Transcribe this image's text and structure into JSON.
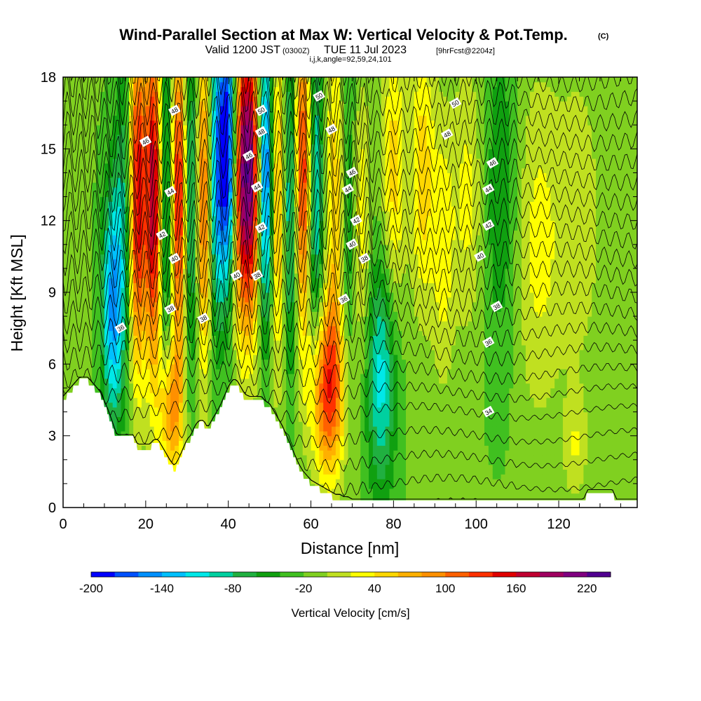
{
  "chart_data": {
    "type": "heatmap",
    "title": "Wind-Parallel Section at Max W: Vertical Velocity & Pot.Temp.",
    "title_mark": "(C)",
    "subtitle": {
      "prefix": "Valid 1200 JST",
      "utc": "(0300Z)",
      "date": "TUE 11 Jul 2023",
      "forecast": "[9hrFcst@2204z]"
    },
    "info_line": "i,j,k,angle=92,59,24,101",
    "xlabel": "Distance [nm]",
    "ylabel": "Height [Kft MSL]",
    "xlim": [
      0,
      139
    ],
    "ylim": [
      0,
      18
    ],
    "x_ticks": [
      0,
      20,
      40,
      60,
      80,
      100,
      120
    ],
    "y_ticks": [
      0,
      3,
      6,
      9,
      12,
      15,
      18
    ],
    "colorbar": {
      "title": "Vertical Velocity [cm/s]",
      "min": -200,
      "max": 240,
      "step": 20,
      "tick_values": [
        -200,
        -140,
        -80,
        -20,
        40,
        100,
        160,
        220
      ],
      "colors": [
        "#0000ff",
        "#0050ff",
        "#0090ff",
        "#00c0ff",
        "#00e8e8",
        "#00d0a0",
        "#20b040",
        "#10a010",
        "#40c020",
        "#80d020",
        "#c0e020",
        "#ffff00",
        "#ffd700",
        "#ffb000",
        "#ff9000",
        "#ff6000",
        "#ff3000",
        "#e00000",
        "#c00030",
        "#a00060",
        "#800080",
        "#500090"
      ]
    },
    "terrain_profile": {
      "x": [
        0,
        1,
        2,
        3,
        4,
        5,
        6,
        7,
        8,
        9,
        10,
        11,
        12,
        13,
        14,
        15,
        16,
        17,
        18,
        19,
        20,
        21,
        22,
        23,
        24,
        25,
        26,
        27,
        28,
        29,
        30,
        31,
        32,
        33,
        34,
        35,
        36,
        37,
        38,
        39,
        40,
        41,
        42,
        43,
        44,
        45,
        46,
        47,
        48,
        49,
        50,
        51,
        52,
        53,
        54,
        55,
        56,
        57,
        58,
        59,
        60,
        61,
        62,
        63,
        64,
        65,
        66,
        67,
        68,
        69,
        70,
        71,
        72,
        73,
        74,
        75,
        76,
        77,
        78,
        79,
        80,
        81,
        82,
        83,
        84,
        85,
        86,
        87,
        88,
        89,
        90,
        91,
        92,
        93,
        94,
        95,
        96,
        97,
        98,
        99,
        100,
        101,
        102,
        103,
        104,
        105,
        106,
        107,
        108,
        109,
        110,
        111,
        112,
        113,
        114,
        115,
        116,
        117,
        118,
        119,
        120,
        121,
        122,
        123,
        124,
        125,
        126,
        127,
        128,
        129,
        130,
        131,
        132,
        133,
        134,
        135,
        136,
        137,
        138,
        139
      ],
      "height": [
        4.6,
        4.8,
        5.0,
        5.2,
        5.4,
        5.4,
        5.4,
        5.2,
        5.0,
        4.8,
        4.4,
        4.0,
        3.5,
        3.0,
        3.0,
        3.0,
        3.0,
        3.0,
        2.6,
        2.6,
        2.6,
        2.6,
        2.8,
        2.8,
        2.5,
        2.2,
        1.9,
        1.7,
        2.0,
        2.4,
        2.8,
        3.0,
        3.4,
        3.6,
        3.6,
        3.3,
        3.6,
        3.9,
        4.2,
        4.6,
        5.0,
        5.3,
        5.3,
        5.0,
        4.7,
        4.6,
        4.6,
        4.6,
        4.6,
        4.4,
        4.3,
        4.0,
        3.7,
        3.4,
        3.0,
        2.6,
        2.2,
        1.8,
        1.5,
        1.3,
        1.1,
        1.0,
        0.9,
        0.8,
        0.7,
        0.6,
        0.5,
        0.5,
        0.4,
        0.4,
        0.3,
        0.3,
        0.3,
        0.3,
        0.3,
        0.3,
        0.3,
        0.3,
        0.3,
        0.3,
        0.3,
        0.3,
        0.3,
        0.3,
        0.3,
        0.3,
        0.3,
        0.3,
        0.3,
        0.3,
        0.3,
        0.3,
        0.3,
        0.3,
        0.3,
        0.3,
        0.3,
        0.3,
        0.3,
        0.3,
        0.3,
        0.3,
        0.3,
        0.3,
        0.3,
        0.3,
        0.3,
        0.3,
        0.3,
        0.3,
        0.3,
        0.3,
        0.3,
        0.3,
        0.3,
        0.3,
        0.3,
        0.3,
        0.3,
        0.3,
        0.3,
        0.3,
        0.3,
        0.3,
        0.3,
        0.3,
        0.3,
        0.7,
        0.7,
        0.7,
        0.7,
        0.7,
        0.7,
        0.7,
        0.3,
        0.3,
        0.3,
        0.3,
        0.3,
        0.3,
        0.3
      ]
    },
    "velocity_cores": [
      {
        "x": 12,
        "y": 8.5,
        "sigma_x": 1.8,
        "sigma_y": 3.5,
        "w": -130
      },
      {
        "x": 15,
        "y": 13,
        "sigma_x": 1.5,
        "sigma_y": 5,
        "w": -60
      },
      {
        "x": 18,
        "y": 13,
        "sigma_x": 1.5,
        "sigma_y": 5,
        "w": 180
      },
      {
        "x": 22,
        "y": 13,
        "sigma_x": 1.4,
        "sigma_y": 5,
        "w": 200
      },
      {
        "x": 25,
        "y": 13,
        "sigma_x": 1.4,
        "sigma_y": 5,
        "w": -90
      },
      {
        "x": 28,
        "y": 13,
        "sigma_x": 1.4,
        "sigma_y": 5,
        "w": 180
      },
      {
        "x": 26,
        "y": 4.0,
        "sigma_x": 2.0,
        "sigma_y": 2.0,
        "w": 100
      },
      {
        "x": 31,
        "y": 13,
        "sigma_x": 1.4,
        "sigma_y": 5,
        "w": -100
      },
      {
        "x": 34,
        "y": 13,
        "sigma_x": 1.4,
        "sigma_y": 5,
        "w": 140
      },
      {
        "x": 37,
        "y": 14,
        "sigma_x": 1.4,
        "sigma_y": 4.5,
        "w": -110
      },
      {
        "x": 40,
        "y": 15,
        "sigma_x": 1.6,
        "sigma_y": 4,
        "w": -200
      },
      {
        "x": 43,
        "y": 14,
        "sigma_x": 1.6,
        "sigma_y": 4.5,
        "w": 190
      },
      {
        "x": 46,
        "y": 14,
        "sigma_x": 1.6,
        "sigma_y": 4.5,
        "w": 190
      },
      {
        "x": 49,
        "y": 14,
        "sigma_x": 1.5,
        "sigma_y": 4.5,
        "w": -180
      },
      {
        "x": 52,
        "y": 13,
        "sigma_x": 1.5,
        "sigma_y": 5,
        "w": 120
      },
      {
        "x": 55,
        "y": 13,
        "sigma_x": 1.5,
        "sigma_y": 5,
        "w": -110
      },
      {
        "x": 58,
        "y": 14,
        "sigma_x": 1.5,
        "sigma_y": 4.5,
        "w": 180
      },
      {
        "x": 61,
        "y": 13,
        "sigma_x": 1.5,
        "sigma_y": 5,
        "w": -100
      },
      {
        "x": 64,
        "y": 5.0,
        "sigma_x": 3.0,
        "sigma_y": 2.6,
        "w": 150
      },
      {
        "x": 66,
        "y": 13,
        "sigma_x": 1.8,
        "sigma_y": 5,
        "w": 80
      },
      {
        "x": 69,
        "y": 12,
        "sigma_x": 1.6,
        "sigma_y": 5,
        "w": -60
      },
      {
        "x": 72,
        "y": 12,
        "sigma_x": 1.6,
        "sigma_y": 4,
        "w": 60
      },
      {
        "x": 77,
        "y": 5.5,
        "sigma_x": 2.5,
        "sigma_y": 3.5,
        "w": -90
      },
      {
        "x": 80,
        "y": 14,
        "sigma_x": 2.0,
        "sigma_y": 4,
        "w": 70
      },
      {
        "x": 87,
        "y": 14,
        "sigma_x": 2.0,
        "sigma_y": 4,
        "w": 70
      },
      {
        "x": 92,
        "y": 11,
        "sigma_x": 2.0,
        "sigma_y": 4,
        "w": 50
      },
      {
        "x": 98,
        "y": 13,
        "sigma_x": 2.5,
        "sigma_y": 4,
        "w": 45
      },
      {
        "x": 106,
        "y": 13,
        "sigma_x": 3.0,
        "sigma_y": 5,
        "w": -40
      },
      {
        "x": 115,
        "y": 11,
        "sigma_x": 4.0,
        "sigma_y": 5,
        "w": 45
      },
      {
        "x": 125,
        "y": 12,
        "sigma_x": 4.0,
        "sigma_y": 5,
        "w": 30
      },
      {
        "x": 124,
        "y": 2.5,
        "sigma_x": 2.0,
        "sigma_y": 1.5,
        "w": 35
      }
    ],
    "theta_contours": {
      "min_level": 26,
      "max_level": 52,
      "step": 1,
      "labels": [
        {
          "value": "36",
          "x": 14,
          "y": 7.5
        },
        {
          "value": "38",
          "x": 26,
          "y": 8.3
        },
        {
          "value": "38",
          "x": 34,
          "y": 7.9
        },
        {
          "value": "42",
          "x": 24,
          "y": 11.4
        },
        {
          "value": "40",
          "x": 27,
          "y": 10.4
        },
        {
          "value": "44",
          "x": 26,
          "y": 13.2
        },
        {
          "value": "46",
          "x": 20,
          "y": 15.3
        },
        {
          "value": "48",
          "x": 27,
          "y": 16.6
        },
        {
          "value": "40",
          "x": 42,
          "y": 9.7
        },
        {
          "value": "38",
          "x": 47,
          "y": 9.7
        },
        {
          "value": "42",
          "x": 48,
          "y": 11.7
        },
        {
          "value": "44",
          "x": 47,
          "y": 13.4
        },
        {
          "value": "46",
          "x": 45,
          "y": 14.7
        },
        {
          "value": "48",
          "x": 48,
          "y": 15.7
        },
        {
          "value": "50",
          "x": 48,
          "y": 16.6
        },
        {
          "value": "50",
          "x": 62,
          "y": 17.2
        },
        {
          "value": "48",
          "x": 65,
          "y": 15.8
        },
        {
          "value": "46",
          "x": 70,
          "y": 14.0
        },
        {
          "value": "44",
          "x": 69,
          "y": 13.3
        },
        {
          "value": "42",
          "x": 71,
          "y": 12.0
        },
        {
          "value": "40",
          "x": 70,
          "y": 11.0
        },
        {
          "value": "38",
          "x": 73,
          "y": 10.4
        },
        {
          "value": "36",
          "x": 68,
          "y": 8.7
        },
        {
          "value": "50",
          "x": 95,
          "y": 16.9
        },
        {
          "value": "48",
          "x": 93,
          "y": 15.6
        },
        {
          "value": "46",
          "x": 104,
          "y": 14.4
        },
        {
          "value": "44",
          "x": 103,
          "y": 13.3
        },
        {
          "value": "42",
          "x": 103,
          "y": 11.8
        },
        {
          "value": "40",
          "x": 101,
          "y": 10.5
        },
        {
          "value": "38",
          "x": 105,
          "y": 8.4
        },
        {
          "value": "36",
          "x": 103,
          "y": 6.9
        },
        {
          "value": "34",
          "x": 103,
          "y": 4.0
        }
      ]
    }
  }
}
